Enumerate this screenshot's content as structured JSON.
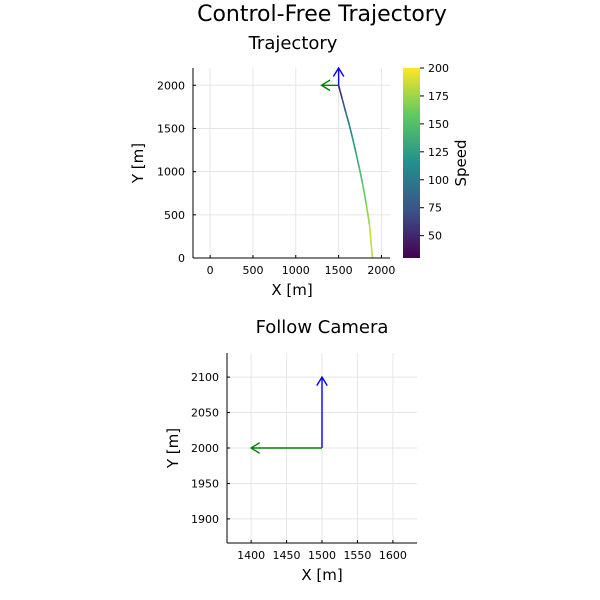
{
  "figure": {
    "title": "Control-Free Trajectory"
  },
  "colors": {
    "heading_arrow": "#0000ff",
    "velocity_arrow": "#008000",
    "colormap": [
      "#440154",
      "#3b528b",
      "#21908d",
      "#5dc962",
      "#fde725"
    ]
  },
  "chart_data": [
    {
      "type": "line",
      "title": "Trajectory",
      "xlabel": "X [m]",
      "ylabel": "Y [m]",
      "xlim": [
        -200,
        2100
      ],
      "ylim": [
        0,
        2200
      ],
      "xticks": [
        0,
        500,
        1000,
        1500,
        2000
      ],
      "xtick_labels": [
        "0",
        "500",
        "1000",
        "1500",
        "2000"
      ],
      "yticks": [
        0,
        500,
        1000,
        1500,
        2000
      ],
      "ytick_labels": [
        "0",
        "500",
        "1000",
        "1500",
        "2000"
      ],
      "grid": true,
      "series": [
        {
          "x": [
            1500,
            1510,
            1540,
            1580,
            1620,
            1660,
            1700,
            1740,
            1780,
            1820,
            1860,
            1895
          ],
          "y": [
            2000,
            1960,
            1850,
            1700,
            1560,
            1400,
            1230,
            1050,
            860,
            640,
            390,
            0
          ],
          "speed": [
            30,
            45,
            65,
            85,
            100,
            115,
            128,
            140,
            152,
            165,
            178,
            190
          ]
        }
      ],
      "arrows": [
        {
          "kind": "heading",
          "from": [
            1500,
            2000
          ],
          "to": [
            1500,
            2200
          ]
        },
        {
          "kind": "velocity",
          "from": [
            1500,
            2000
          ],
          "to": [
            1300,
            2000
          ]
        }
      ],
      "colorbar": {
        "label": "Speed",
        "range": [
          30,
          200
        ],
        "ticks": [
          50,
          75,
          100,
          125,
          150,
          175,
          200
        ],
        "tick_labels": [
          "50",
          "75",
          "100",
          "125",
          "150",
          "175",
          "200"
        ]
      }
    },
    {
      "type": "line",
      "title": "Follow Camera",
      "xlabel": "X [m]",
      "ylabel": "Y [m]",
      "xlim": [
        1366,
        1634
      ],
      "ylim": [
        1866,
        2134
      ],
      "xticks": [
        1400,
        1450,
        1500,
        1550,
        1600
      ],
      "xtick_labels": [
        "1400",
        "1450",
        "1500",
        "1550",
        "1600"
      ],
      "yticks": [
        1900,
        1950,
        2000,
        2050,
        2100
      ],
      "ytick_labels": [
        "1900",
        "1950",
        "2000",
        "2050",
        "2100"
      ],
      "grid": true,
      "series": [],
      "arrows": [
        {
          "kind": "heading",
          "from": [
            1500,
            2000
          ],
          "to": [
            1500,
            2100
          ]
        },
        {
          "kind": "velocity",
          "from": [
            1500,
            2000
          ],
          "to": [
            1400,
            2000
          ]
        }
      ]
    }
  ]
}
